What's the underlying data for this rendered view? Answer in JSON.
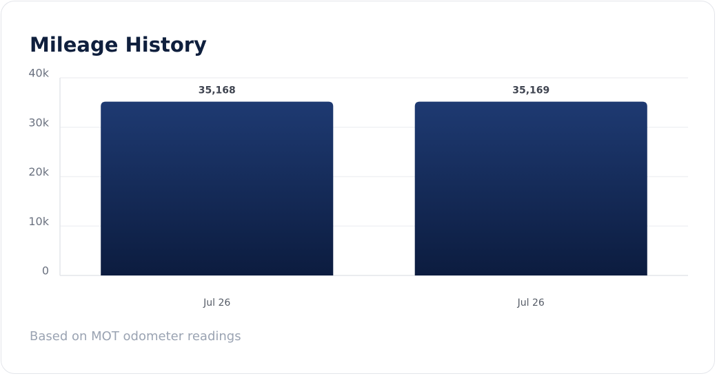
{
  "chart_data": {
    "type": "bar",
    "title": "Mileage History",
    "categories": [
      "Jul 26",
      "Jul 26"
    ],
    "values": [
      35168,
      35169
    ],
    "value_labels": [
      "35,168",
      "35,169"
    ],
    "color": "#1b3670",
    "ylim": [
      0,
      40000
    ],
    "yticks": [
      0,
      {
        "value": 10000,
        "label": "10k"
      },
      {
        "value": 20000,
        "label": "20k"
      },
      {
        "value": 30000,
        "label": "30k"
      },
      {
        "value": 40000,
        "label": "40k"
      }
    ],
    "grid": true,
    "footnote": "Based on MOT odometer readings"
  }
}
